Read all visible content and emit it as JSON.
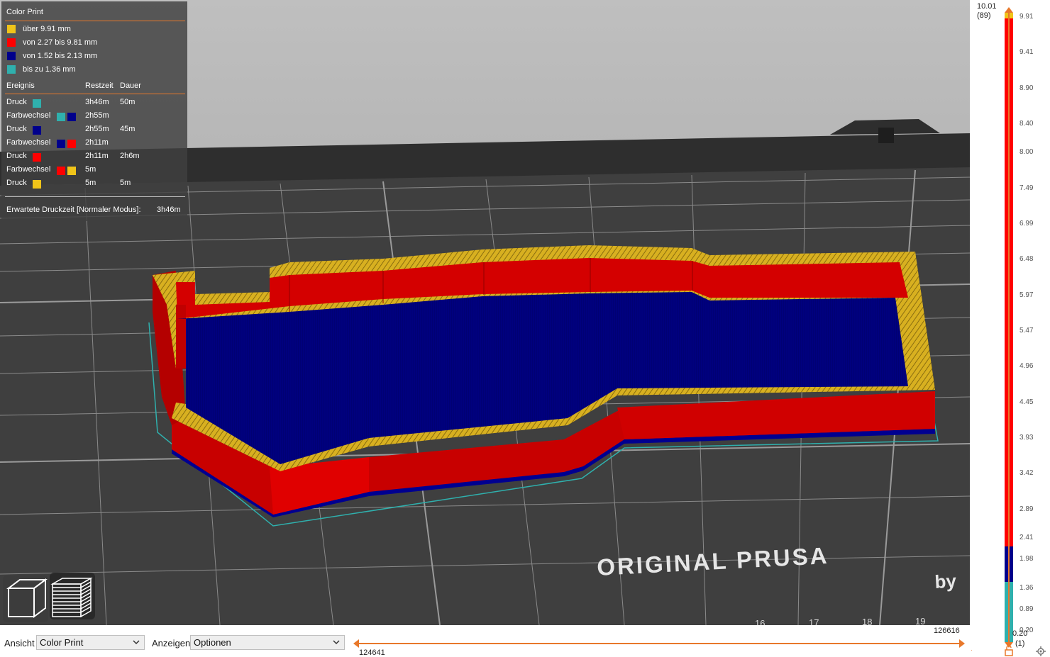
{
  "legend": {
    "title": "Color Print",
    "colors": [
      {
        "label": "über 9.91 mm",
        "color": "#f0c419"
      },
      {
        "label": "von 2.27 bis 9.81 mm",
        "color": "#ff0000"
      },
      {
        "label": "von 1.52 bis 2.13 mm",
        "color": "#00008b"
      },
      {
        "label": "bis zu 1.36 mm",
        "color": "#2fb0ad"
      }
    ],
    "columns": {
      "event": "Ereignis",
      "remaining": "Restzeit",
      "duration": "Dauer"
    },
    "events": [
      {
        "name": "Druck",
        "swatches": [
          "#2fb0ad"
        ],
        "remaining": "3h46m",
        "duration": "50m"
      },
      {
        "name": "Farbwechsel",
        "swatches": [
          "#2fb0ad",
          "#00008b"
        ],
        "remaining": "2h55m",
        "duration": ""
      },
      {
        "name": "Druck",
        "swatches": [
          "#00008b"
        ],
        "remaining": "2h55m",
        "duration": "45m"
      },
      {
        "name": "Farbwechsel",
        "swatches": [
          "#00008b",
          "#ff0000"
        ],
        "remaining": "2h11m",
        "duration": ""
      },
      {
        "name": "Druck",
        "swatches": [
          "#ff0000"
        ],
        "remaining": "2h11m",
        "duration": "2h6m"
      },
      {
        "name": "Farbwechsel",
        "swatches": [
          "#ff0000",
          "#f0c419"
        ],
        "remaining": "5m",
        "duration": ""
      },
      {
        "name": "Druck",
        "swatches": [
          "#f0c419"
        ],
        "remaining": "5m",
        "duration": "5m"
      }
    ],
    "total_label": "Erwartete Druckzeit [Normaler Modus]:",
    "total_value": "3h46m"
  },
  "bed_text": {
    "brand": "ORIGINAL PRUSA",
    "by": "by",
    "numbers": [
      "16",
      "17",
      "18",
      "19"
    ]
  },
  "toolbar": {
    "view_label": "Ansicht",
    "view_value": "Color Print",
    "show_label": "Anzeigen",
    "show_value": "Optionen"
  },
  "hslider": {
    "left_value": "124641",
    "right_value": "126616"
  },
  "vslider": {
    "top_value": "10.01",
    "top_layer": "(89)",
    "bottom_value": "0.20",
    "bottom_layer": "(1)",
    "ticks": [
      "9.91",
      "9.41",
      "8.90",
      "8.40",
      "8.00",
      "7.49",
      "6.99",
      "6.48",
      "5.97",
      "5.47",
      "4.96",
      "4.45",
      "3.93",
      "3.42",
      "2.89",
      "2.41",
      "1.98",
      "1.36",
      "0.89",
      "0.20"
    ],
    "max": 10.01,
    "min": 0.2
  },
  "colors": {
    "accent": "#e8782a",
    "yellow": "#f0c419",
    "red": "#ff0000",
    "blue": "#00008b",
    "teal": "#2fb0ad"
  }
}
